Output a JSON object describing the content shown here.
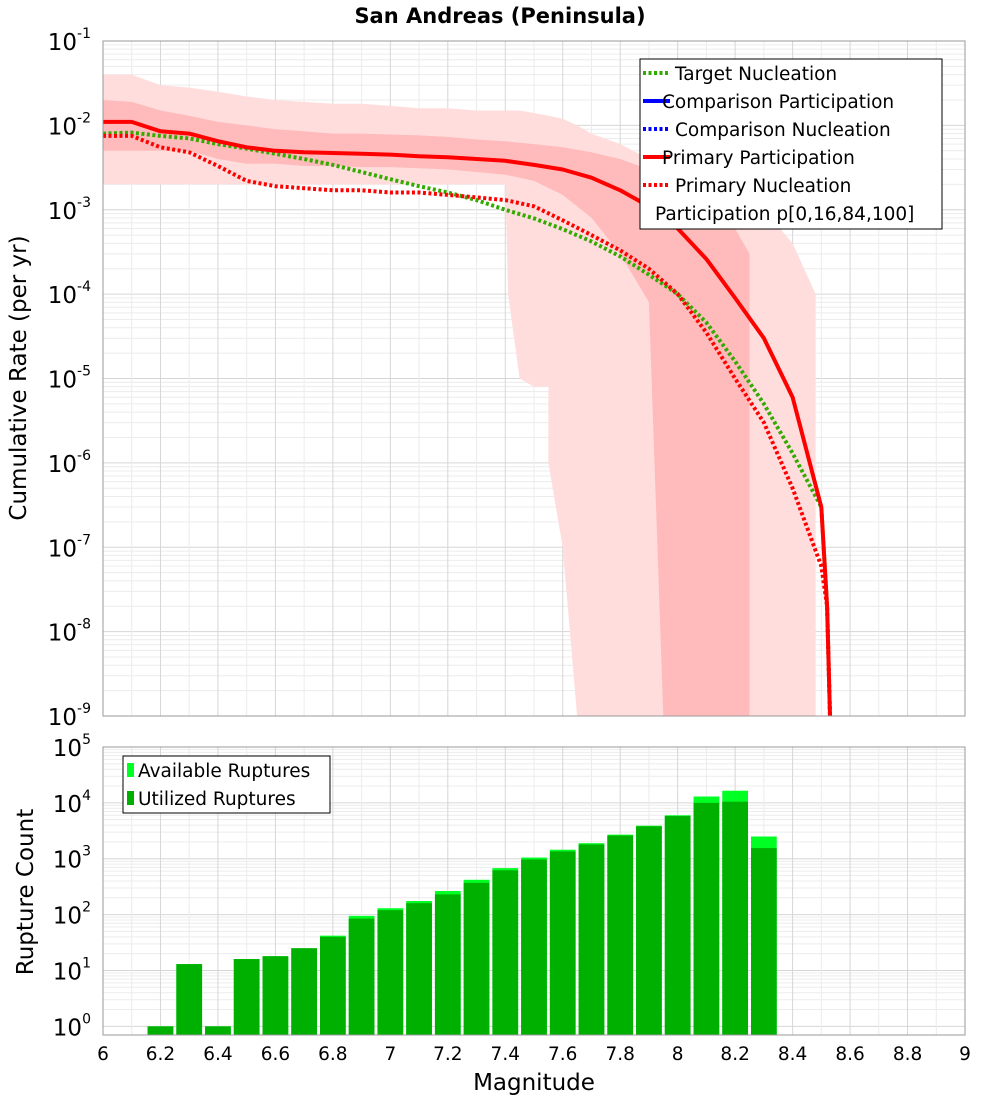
{
  "title": "San Andreas (Peninsula)",
  "chart_data": [
    {
      "type": "line",
      "title": "San Andreas (Peninsula)",
      "xlabel": "",
      "ylabel": "Cumulative Rate (per yr)",
      "xlim": [
        6,
        9
      ],
      "ylim": [
        1e-09,
        0.1
      ],
      "yscale": "log",
      "grid": true,
      "legend_position": "top-right",
      "y_tick_labels": [
        {
          "base": "10",
          "exp": "-9",
          "value": 1e-09
        },
        {
          "base": "10",
          "exp": "-8",
          "value": 1e-08
        },
        {
          "base": "10",
          "exp": "-7",
          "value": 1e-07
        },
        {
          "base": "10",
          "exp": "-6",
          "value": 1e-06
        },
        {
          "base": "10",
          "exp": "-5",
          "value": 1e-05
        },
        {
          "base": "10",
          "exp": "-4",
          "value": 0.0001
        },
        {
          "base": "10",
          "exp": "-3",
          "value": 0.001
        },
        {
          "base": "10",
          "exp": "-2",
          "value": 0.01
        },
        {
          "base": "10",
          "exp": "-1",
          "value": 0.1
        }
      ],
      "legend": [
        {
          "label": "Target Nucleation",
          "style": "dotted",
          "color": "#33aa00"
        },
        {
          "label": "Comparison Participation",
          "style": "solid",
          "color": "#0000ff"
        },
        {
          "label": "Comparison Nucleation",
          "style": "dotted",
          "color": "#0000ff"
        },
        {
          "label": "Primary Participation",
          "style": "solid",
          "color": "#ff0000"
        },
        {
          "label": "Primary Nucleation",
          "style": "dotted",
          "color": "#ff0000"
        },
        {
          "label": "Participation p[0,16,84,100]",
          "style": "none",
          "color": ""
        }
      ],
      "series": [
        {
          "name": "Target Nucleation",
          "style": "dotted",
          "color": "#33aa00",
          "points": [
            [
              6.0,
              0.008
            ],
            [
              6.1,
              0.0082
            ],
            [
              6.2,
              0.0075
            ],
            [
              6.3,
              0.007
            ],
            [
              6.4,
              0.006
            ],
            [
              6.5,
              0.0053
            ],
            [
              6.6,
              0.0046
            ],
            [
              6.7,
              0.004
            ],
            [
              6.8,
              0.0034
            ],
            [
              6.9,
              0.0028
            ],
            [
              7.0,
              0.0023
            ],
            [
              7.1,
              0.0019
            ],
            [
              7.2,
              0.0016
            ],
            [
              7.3,
              0.0013
            ],
            [
              7.4,
              0.001
            ],
            [
              7.5,
              0.00079
            ],
            [
              7.6,
              0.00059
            ],
            [
              7.7,
              0.00042
            ],
            [
              7.8,
              0.00028
            ],
            [
              7.9,
              0.00017
            ],
            [
              8.0,
              0.0001
            ],
            [
              8.1,
              4.6e-05
            ],
            [
              8.2,
              1.6e-05
            ],
            [
              8.3,
              5e-06
            ],
            [
              8.4,
              1.3e-06
            ],
            [
              8.5,
              3e-07
            ],
            [
              8.52,
              2e-08
            ],
            [
              8.53,
              1e-09
            ]
          ]
        },
        {
          "name": "Primary Participation",
          "style": "solid",
          "color": "#ff0000",
          "points": [
            [
              6.0,
              0.011
            ],
            [
              6.1,
              0.011
            ],
            [
              6.2,
              0.0085
            ],
            [
              6.3,
              0.008
            ],
            [
              6.4,
              0.0065
            ],
            [
              6.5,
              0.0055
            ],
            [
              6.6,
              0.005
            ],
            [
              6.7,
              0.0048
            ],
            [
              6.8,
              0.0047
            ],
            [
              6.9,
              0.0046
            ],
            [
              7.0,
              0.0045
            ],
            [
              7.1,
              0.0043
            ],
            [
              7.2,
              0.0042
            ],
            [
              7.3,
              0.004
            ],
            [
              7.4,
              0.0038
            ],
            [
              7.5,
              0.0034
            ],
            [
              7.6,
              0.003
            ],
            [
              7.7,
              0.0024
            ],
            [
              7.8,
              0.0017
            ],
            [
              7.9,
              0.0011
            ],
            [
              8.0,
              0.0006
            ],
            [
              8.1,
              0.00026
            ],
            [
              8.2,
              9e-05
            ],
            [
              8.3,
              3e-05
            ],
            [
              8.4,
              6e-06
            ],
            [
              8.5,
              3e-07
            ],
            [
              8.52,
              2e-08
            ],
            [
              8.53,
              1e-09
            ]
          ]
        },
        {
          "name": "Primary Nucleation",
          "style": "dotted",
          "color": "#ff0000",
          "points": [
            [
              6.0,
              0.0075
            ],
            [
              6.1,
              0.0075
            ],
            [
              6.2,
              0.0055
            ],
            [
              6.3,
              0.0048
            ],
            [
              6.4,
              0.0033
            ],
            [
              6.5,
              0.0022
            ],
            [
              6.6,
              0.0019
            ],
            [
              6.7,
              0.0018
            ],
            [
              6.8,
              0.0017
            ],
            [
              6.9,
              0.0017
            ],
            [
              7.0,
              0.0016
            ],
            [
              7.1,
              0.0016
            ],
            [
              7.2,
              0.0015
            ],
            [
              7.3,
              0.0014
            ],
            [
              7.4,
              0.0013
            ],
            [
              7.5,
              0.0011
            ],
            [
              7.6,
              0.00075
            ],
            [
              7.7,
              0.0005
            ],
            [
              7.8,
              0.00033
            ],
            [
              7.9,
              0.0002
            ],
            [
              8.0,
              0.0001
            ],
            [
              8.1,
              3.5e-05
            ],
            [
              8.2,
              1e-05
            ],
            [
              8.3,
              3e-06
            ],
            [
              8.4,
              5e-07
            ],
            [
              8.5,
              6e-08
            ],
            [
              8.52,
              2e-08
            ],
            [
              8.53,
              1e-09
            ]
          ]
        }
      ],
      "bands": [
        {
          "name": "Participation p[0,100]",
          "color": "#ffdddd",
          "points": [
            [
              6.0,
              0.002,
              0.04
            ],
            [
              6.1,
              0.002,
              0.04
            ],
            [
              6.2,
              0.002,
              0.03
            ],
            [
              6.3,
              0.002,
              0.028
            ],
            [
              6.4,
              0.002,
              0.025
            ],
            [
              6.5,
              0.002,
              0.022
            ],
            [
              6.6,
              0.002,
              0.02
            ],
            [
              6.7,
              0.002,
              0.019
            ],
            [
              6.8,
              0.002,
              0.018
            ],
            [
              6.9,
              0.002,
              0.018
            ],
            [
              7.0,
              0.002,
              0.017
            ],
            [
              7.1,
              0.002,
              0.016
            ],
            [
              7.2,
              0.002,
              0.016
            ],
            [
              7.3,
              0.002,
              0.015
            ],
            [
              7.4,
              0.002,
              0.015
            ],
            [
              7.41,
              0.0001,
              0.015
            ],
            [
              7.45,
              1e-05,
              0.015
            ],
            [
              7.5,
              8e-06,
              0.014
            ],
            [
              7.55,
              8e-06,
              0.013
            ],
            [
              7.55,
              1e-06,
              0.013
            ],
            [
              7.6,
              1e-07,
              0.012
            ],
            [
              7.65,
              1e-09,
              0.01
            ],
            [
              7.7,
              1e-09,
              0.008
            ],
            [
              7.8,
              1e-09,
              0.006
            ],
            [
              7.9,
              1e-09,
              0.004
            ],
            [
              8.0,
              1e-09,
              0.003
            ],
            [
              8.1,
              1e-09,
              0.002
            ],
            [
              8.2,
              1e-09,
              0.0015
            ],
            [
              8.3,
              1e-09,
              0.001
            ],
            [
              8.4,
              1e-09,
              0.0004
            ],
            [
              8.48,
              1e-09,
              0.0001
            ],
            [
              8.48,
              1e-09,
              1e-09
            ]
          ]
        },
        {
          "name": "Participation p[16,84]",
          "color": "#ffbbbb",
          "points": [
            [
              6.0,
              0.005,
              0.02
            ],
            [
              6.1,
              0.005,
              0.019
            ],
            [
              6.2,
              0.005,
              0.015
            ],
            [
              6.3,
              0.005,
              0.013
            ],
            [
              6.4,
              0.004,
              0.011
            ],
            [
              6.5,
              0.0035,
              0.01
            ],
            [
              6.6,
              0.0035,
              0.009
            ],
            [
              6.7,
              0.0033,
              0.0085
            ],
            [
              6.8,
              0.0033,
              0.008
            ],
            [
              6.9,
              0.0032,
              0.008
            ],
            [
              7.0,
              0.0032,
              0.0078
            ],
            [
              7.1,
              0.0031,
              0.0076
            ],
            [
              7.2,
              0.003,
              0.0073
            ],
            [
              7.3,
              0.0028,
              0.0068
            ],
            [
              7.4,
              0.0026,
              0.0065
            ],
            [
              7.5,
              0.0022,
              0.006
            ],
            [
              7.6,
              0.0015,
              0.0055
            ],
            [
              7.7,
              0.0008,
              0.0048
            ],
            [
              7.8,
              0.0003,
              0.004
            ],
            [
              7.9,
              8e-05,
              0.003
            ],
            [
              7.95,
              1e-09,
              0.0025
            ],
            [
              8.0,
              1e-09,
              0.0018
            ],
            [
              8.1,
              1e-09,
              0.0012
            ],
            [
              8.2,
              1e-09,
              0.0006
            ],
            [
              8.25,
              1e-09,
              0.0003
            ],
            [
              8.25,
              1e-09,
              1e-09
            ]
          ]
        }
      ]
    },
    {
      "type": "bar",
      "title": "",
      "xlabel": "Magnitude",
      "ylabel": "Rupture Count",
      "xlim": [
        6,
        9
      ],
      "ylim": [
        0.7,
        100000
      ],
      "yscale": "log",
      "grid": true,
      "legend_position": "top-left",
      "bin_width": 0.1,
      "x_ticks": [
        "6",
        "6.2",
        "6.4",
        "6.6",
        "6.8",
        "7",
        "7.2",
        "7.4",
        "7.6",
        "7.8",
        "8",
        "8.2",
        "8.4",
        "8.6",
        "8.8",
        "9"
      ],
      "y_tick_labels": [
        {
          "base": "10",
          "exp": "0",
          "value": 1
        },
        {
          "base": "10",
          "exp": "1",
          "value": 10
        },
        {
          "base": "10",
          "exp": "2",
          "value": 100
        },
        {
          "base": "10",
          "exp": "3",
          "value": 1000
        },
        {
          "base": "10",
          "exp": "4",
          "value": 10000
        },
        {
          "base": "10",
          "exp": "5",
          "value": 100000
        }
      ],
      "legend": [
        {
          "label": "Available Ruptures",
          "color": "#00ff22"
        },
        {
          "label": "Utilized Ruptures",
          "color": "#00b000"
        }
      ],
      "x": [
        6.2,
        6.3,
        6.4,
        6.5,
        6.6,
        6.7,
        6.8,
        6.9,
        7.0,
        7.1,
        7.2,
        7.3,
        7.4,
        7.5,
        7.6,
        7.7,
        7.8,
        7.9,
        8.0,
        8.1,
        8.2,
        8.3
      ],
      "series": [
        {
          "name": "Available Ruptures",
          "color": "#00ff22",
          "values": [
            1,
            13,
            1,
            16,
            18,
            25,
            42,
            95,
            130,
            175,
            265,
            420,
            680,
            1050,
            1450,
            1900,
            2700,
            3900,
            6000,
            13000,
            16500,
            2500
          ]
        },
        {
          "name": "Utilized Ruptures",
          "color": "#00b000",
          "values": [
            1,
            13,
            1,
            16,
            18,
            25,
            40,
            85,
            120,
            160,
            230,
            370,
            620,
            970,
            1350,
            1800,
            2600,
            3800,
            5800,
            10000,
            10500,
            1550
          ]
        }
      ]
    }
  ]
}
